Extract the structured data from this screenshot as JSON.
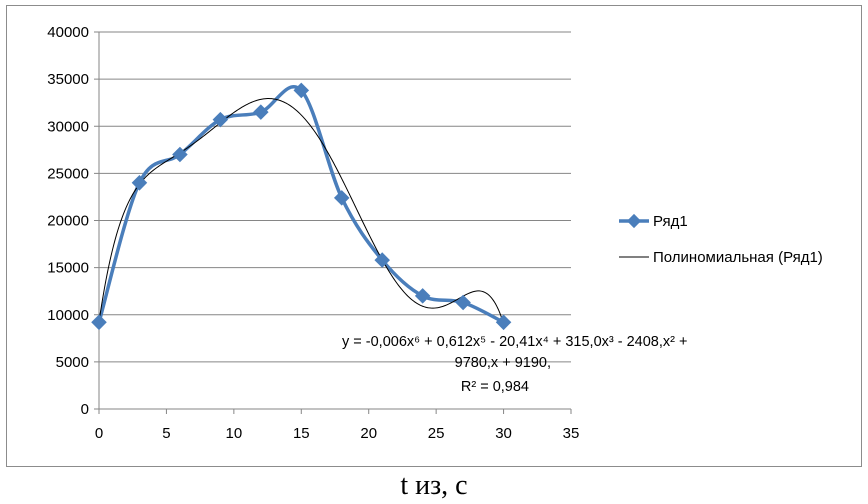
{
  "chart_data": {
    "type": "line",
    "title": "",
    "xlabel": "",
    "ylabel": "",
    "xlim": [
      0,
      35
    ],
    "ylim": [
      0,
      40000
    ],
    "x_ticks": [
      0,
      5,
      10,
      15,
      20,
      25,
      30,
      35
    ],
    "y_ticks": [
      0,
      5000,
      10000,
      15000,
      20000,
      25000,
      30000,
      35000,
      40000
    ],
    "grid": "horizontal",
    "legend_position": "right",
    "series": [
      {
        "name": "Ряд1",
        "color": "#4a7ebb",
        "marker": "diamond",
        "smooth": true,
        "x": [
          0,
          3,
          6,
          9,
          12,
          15,
          18,
          21,
          24,
          27,
          30
        ],
        "y": [
          9200,
          24000,
          27000,
          30700,
          31500,
          33800,
          22400,
          15800,
          12000,
          11300,
          9200
        ]
      }
    ],
    "trendline": {
      "name": "Полиномиальная (Ряд1)",
      "color": "#000000",
      "coefficients_desc": [
        -0.006,
        0.612,
        -20.41,
        315.0,
        -2408,
        9780,
        9190
      ],
      "equation_lines": [
        "y = -0,006x⁶ + 0,612x⁵ - 20,41x⁴ + 315,0x³ - 2408,x² +",
        "9780,x + 9190,",
        "R² = 0,984"
      ]
    }
  },
  "caption": "t из, с"
}
